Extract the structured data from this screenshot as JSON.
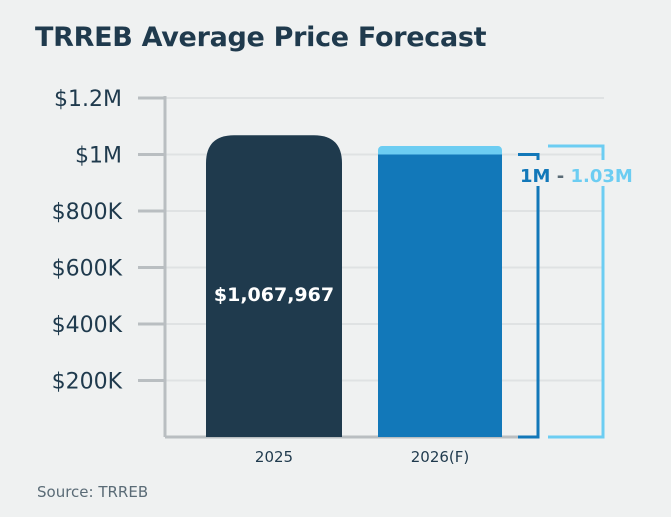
{
  "title": "TRREB Average Price Forecast",
  "source": "Source: TRREB",
  "colors": {
    "bar_2025": "#1f3a4d",
    "bar_2026": "#1278b9",
    "range_light": "#6ccdf2",
    "axis": "#b9bec1",
    "grid": "#dfe2e3",
    "text": "#1f3a4d"
  },
  "chart_data": {
    "type": "bar",
    "title": "TRREB Average Price Forecast",
    "xlabel": "",
    "ylabel": "",
    "categories": [
      "2025",
      "2026(F)"
    ],
    "values": [
      1067967,
      1000000
    ],
    "ylim": [
      0,
      1200000
    ],
    "yticks": [
      200000,
      400000,
      600000,
      800000,
      1000000,
      1200000
    ],
    "ytick_labels": [
      "$200K",
      "$400K",
      "$600K",
      "$800K",
      "$1M",
      "$1.2M"
    ],
    "grid": true,
    "data_labels": [
      "$1,067,967",
      ""
    ],
    "forecast_range": {
      "low": 1000000,
      "high": 1030000,
      "low_label": "1M",
      "separator": " - ",
      "high_label": "1.03M"
    },
    "source": "Source: TRREB"
  }
}
